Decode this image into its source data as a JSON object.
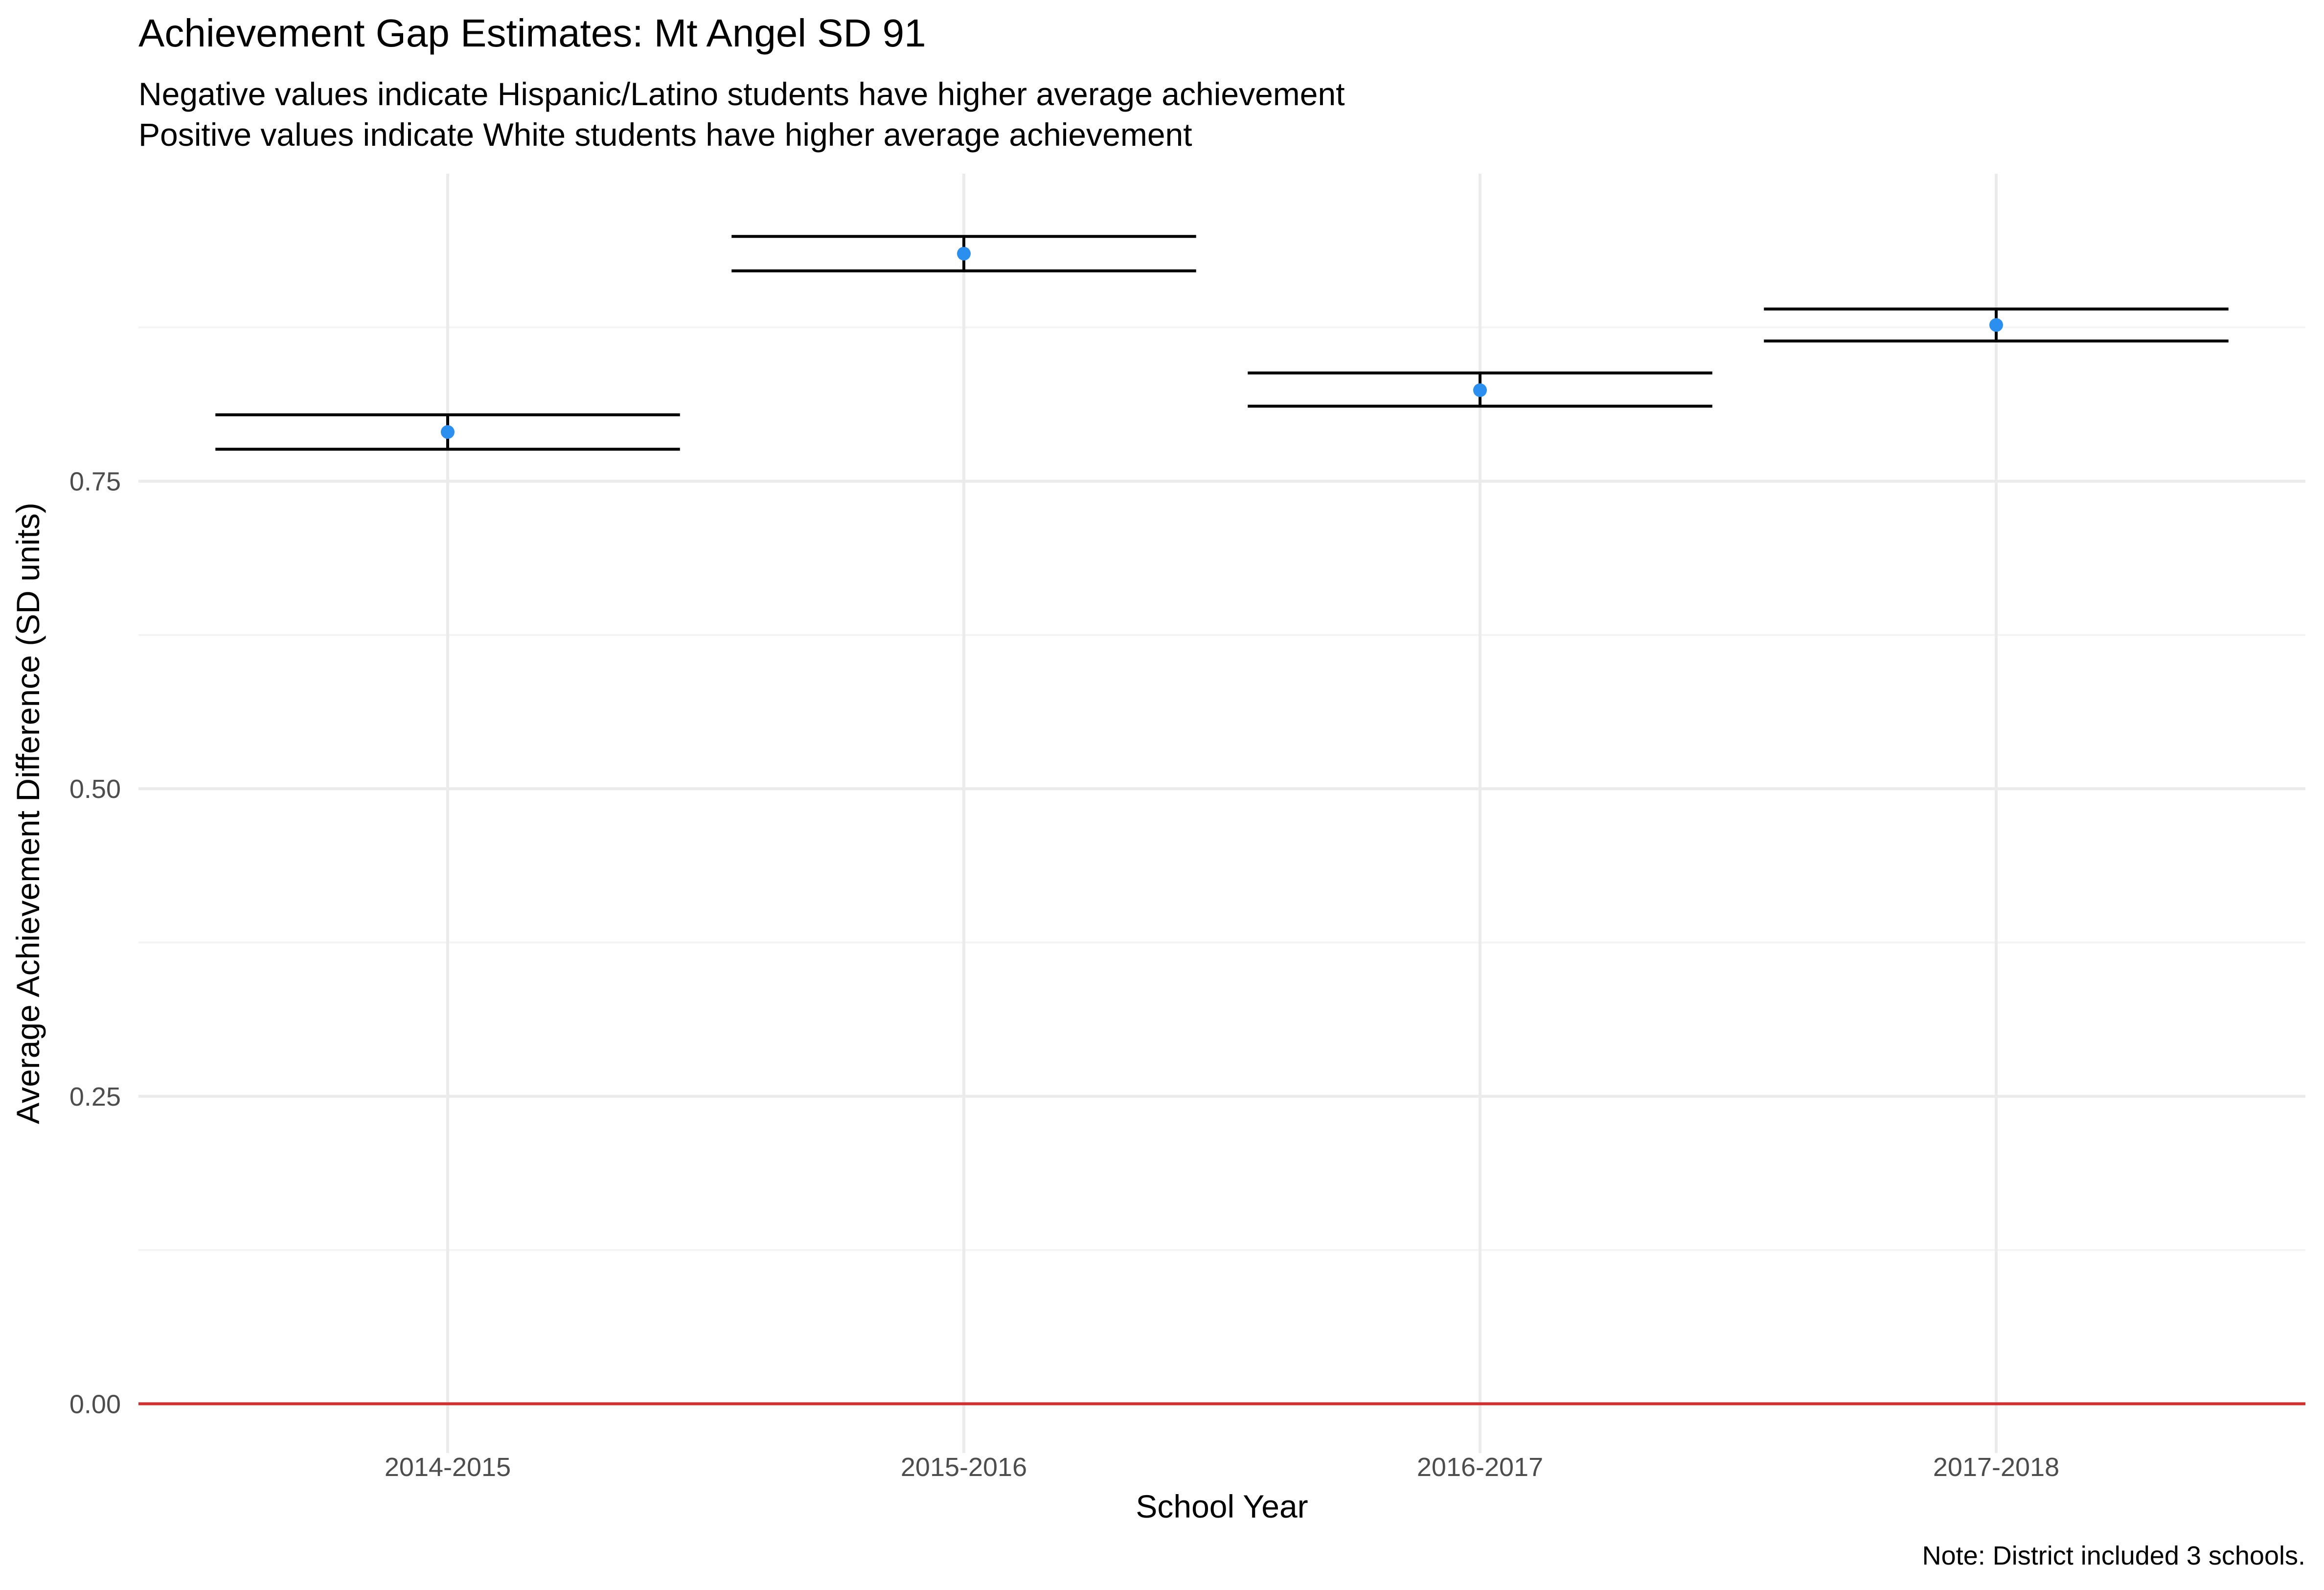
{
  "chart_data": {
    "type": "errorbar",
    "title": "Achievement Gap Estimates: Mt Angel SD 91",
    "subtitle_lines": [
      "Negative values indicate Hispanic/Latino students have higher average achievement",
      "Positive values indicate White students have higher average achievement"
    ],
    "xlabel": "School Year",
    "ylabel": "Average Achievement Difference (SD units)",
    "caption": "Note: District included 3 schools.",
    "categories": [
      "2014-2015",
      "2015-2016",
      "2016-2017",
      "2017-2018"
    ],
    "series": [
      {
        "estimate": [
          0.79,
          0.935,
          0.824,
          0.877
        ],
        "lower": [
          0.776,
          0.921,
          0.811,
          0.864
        ],
        "upper": [
          0.804,
          0.949,
          0.838,
          0.89
        ]
      }
    ],
    "y_ticks": [
      0.0,
      0.25,
      0.5,
      0.75
    ],
    "y_tick_labels": [
      "0.00",
      "0.25",
      "0.50",
      "0.75"
    ],
    "ylim": [
      -0.04,
      1.0
    ],
    "reference_line": {
      "y": 0,
      "color": "#d32f2f"
    },
    "grid": true,
    "colors": {
      "point": "#2b8ff0",
      "errorbar": "#000000",
      "grid_major": "#ebebeb",
      "grid_minor": "#f4f4f4"
    }
  }
}
